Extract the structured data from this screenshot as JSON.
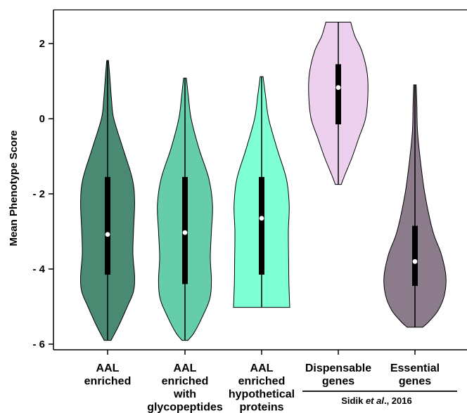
{
  "chart_data": {
    "type": "violin",
    "ylabel": "Mean Phenotype Score",
    "xlabel": "",
    "ylim": [
      -6.1,
      2.9
    ],
    "yticks": [
      2,
      0,
      -2,
      -4,
      -6
    ],
    "ytick_labels": [
      "2",
      "0",
      "- 2",
      "- 4",
      "- 6"
    ],
    "grid": false,
    "categories": [
      {
        "lines": [
          "AAL",
          "enriched"
        ],
        "color": "#4a8a72",
        "min": -5.9,
        "q1": -4.15,
        "median": -3.08,
        "q3": -1.55,
        "max": 1.55
      },
      {
        "lines": [
          "AAL",
          "enriched",
          "with",
          "glycopeptides"
        ],
        "color": "#66cdaa",
        "min": -5.9,
        "q1": -4.4,
        "median": -3.03,
        "q3": -1.55,
        "max": 1.08
      },
      {
        "lines": [
          "AAL",
          "enriched",
          "hypothetical",
          "proteins"
        ],
        "color": "#7fffd4",
        "min": -5.02,
        "q1": -4.15,
        "median": -2.65,
        "q3": -1.55,
        "max": 1.12
      },
      {
        "lines": [
          "Dispensable",
          "genes"
        ],
        "color": "#ecd0ee",
        "min": -1.75,
        "q1": -0.15,
        "median": 0.83,
        "q3": 1.45,
        "max": 2.57
      },
      {
        "lines": [
          "Essential",
          "genes"
        ],
        "color": "#8b7b8b",
        "min": -5.55,
        "q1": -4.45,
        "median": -3.8,
        "q3": -2.85,
        "max": 0.9
      }
    ],
    "annotation": {
      "text_prefix": "Sidik ",
      "text_italic": "et al",
      "text_suffix": "., 2016",
      "spans": [
        3,
        4
      ]
    }
  }
}
